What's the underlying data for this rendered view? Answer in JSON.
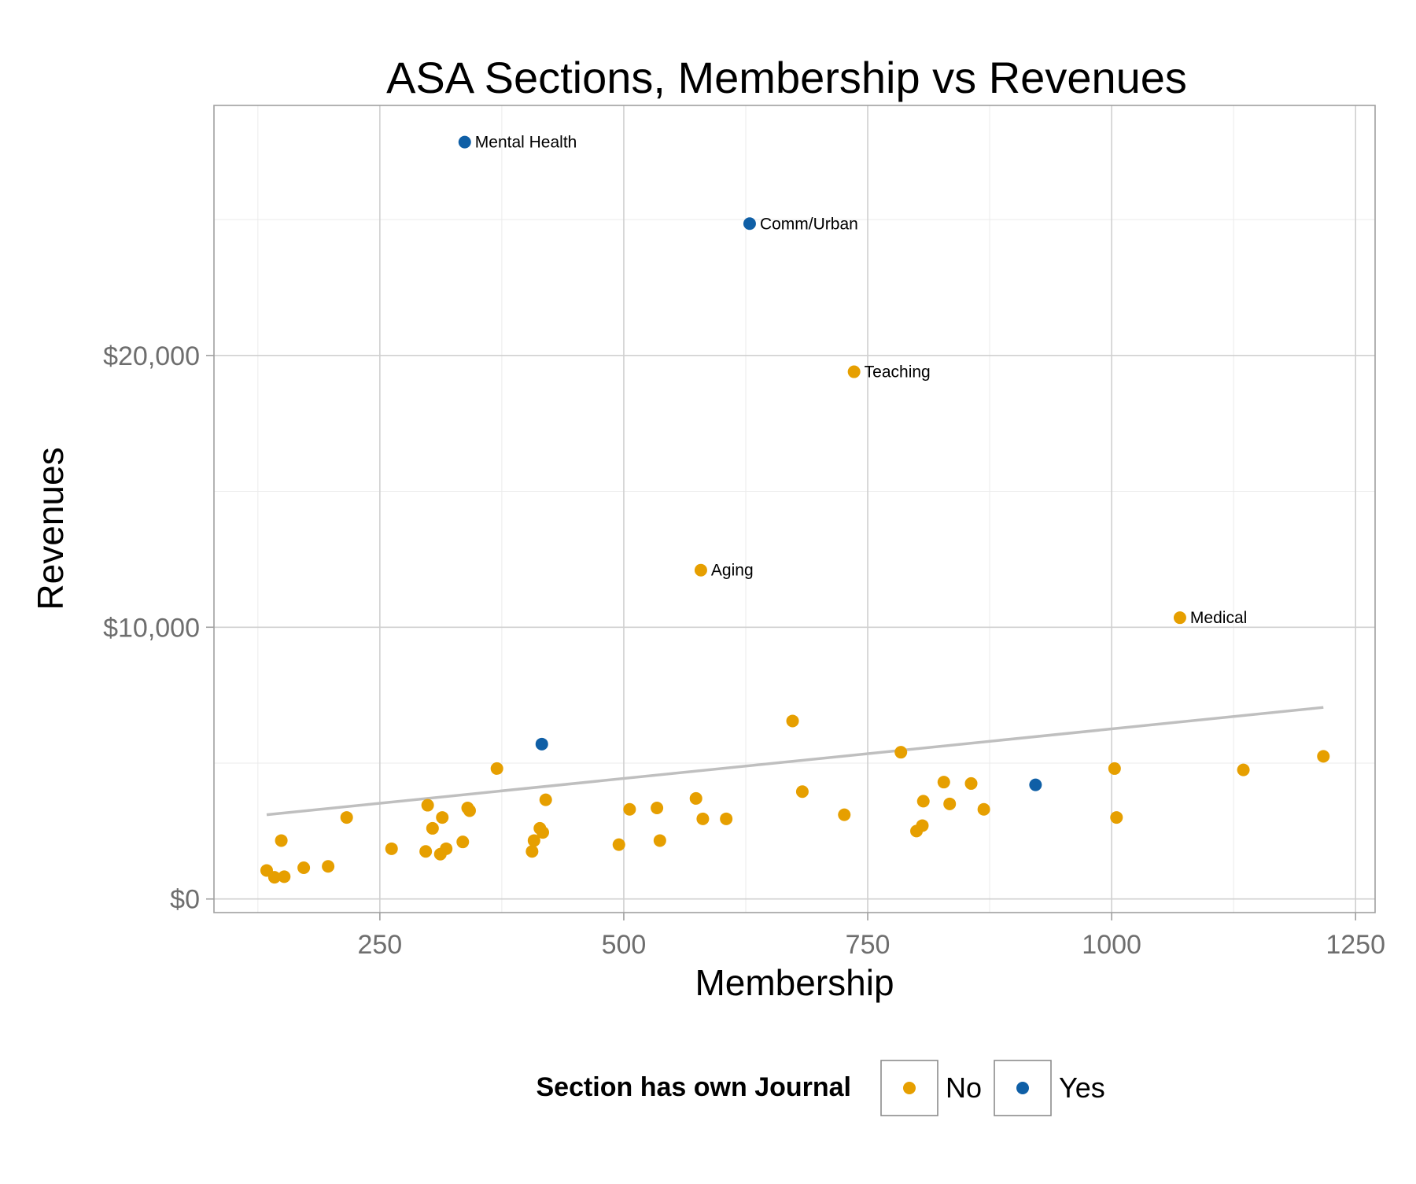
{
  "chart_data": {
    "type": "scatter",
    "title": "ASA Sections, Membership vs Revenues",
    "xlabel": "Membership",
    "ylabel": "Revenues",
    "xlim": [
      80,
      1270
    ],
    "ylim": [
      -500,
      29200
    ],
    "x_ticks": [
      250,
      500,
      750,
      1000,
      1250
    ],
    "x_tick_labels": [
      "250",
      "500",
      "750",
      "1000",
      "1250"
    ],
    "y_ticks": [
      0,
      10000,
      20000
    ],
    "y_tick_labels": [
      "$0",
      "$10,000",
      "$20,000"
    ],
    "x_minor_ticks": [
      125,
      375,
      625,
      875,
      1125
    ],
    "y_minor_ticks": [
      5000,
      15000,
      25000
    ],
    "grid": true,
    "legend": {
      "title": "Section has own Journal",
      "position": "bottom",
      "entries": [
        {
          "label": "No",
          "color": "#E69F00"
        },
        {
          "label": "Yes",
          "color": "#0F5FA6"
        }
      ]
    },
    "colors": {
      "No": "#E69F00",
      "Yes": "#0F5FA6",
      "trend": "#BFBFBF"
    },
    "trend_line": {
      "x": [
        134,
        1217
      ],
      "y": [
        3100,
        7050
      ]
    },
    "series": [
      {
        "name": "No",
        "points": [
          [
            134,
            1050
          ],
          [
            142,
            800
          ],
          [
            149,
            2150
          ],
          [
            152,
            820
          ],
          [
            172,
            1150
          ],
          [
            197,
            1200
          ],
          [
            216,
            3000
          ],
          [
            262,
            1850
          ],
          [
            297,
            1750
          ],
          [
            299,
            3450
          ],
          [
            304,
            2600
          ],
          [
            312,
            1650
          ],
          [
            314,
            3000
          ],
          [
            318,
            1850
          ],
          [
            335,
            2100
          ],
          [
            340,
            3350
          ],
          [
            342,
            3250
          ],
          [
            370,
            4800
          ],
          [
            406,
            1750
          ],
          [
            408,
            2150
          ],
          [
            414,
            2600
          ],
          [
            417,
            2450
          ],
          [
            420,
            3650
          ],
          [
            495,
            2000
          ],
          [
            506,
            3300
          ],
          [
            534,
            3350
          ],
          [
            537,
            2150
          ],
          [
            574,
            3700
          ],
          [
            581,
            2950
          ],
          [
            605,
            2950
          ],
          [
            673,
            6550
          ],
          [
            683,
            3950
          ],
          [
            726,
            3100
          ],
          [
            784,
            5400
          ],
          [
            800,
            2500
          ],
          [
            806,
            2700
          ],
          [
            807,
            3600
          ],
          [
            828,
            4300
          ],
          [
            834,
            3500
          ],
          [
            856,
            4250
          ],
          [
            869,
            3300
          ],
          [
            1003,
            4800
          ],
          [
            1005,
            3000
          ],
          [
            1135,
            4750
          ],
          [
            1217,
            5250
          ]
        ],
        "labeled_points": [
          {
            "x": 736,
            "y": 19400,
            "label": "Teaching"
          },
          {
            "x": 579,
            "y": 12100,
            "label": "Aging"
          },
          {
            "x": 1070,
            "y": 10350,
            "label": "Medical"
          }
        ]
      },
      {
        "name": "Yes",
        "points": [
          [
            416,
            5700
          ],
          [
            922,
            4200
          ]
        ],
        "labeled_points": [
          {
            "x": 337,
            "y": 27850,
            "label": "Mental Health"
          },
          {
            "x": 629,
            "y": 24850,
            "label": "Comm/Urban"
          }
        ]
      }
    ]
  }
}
